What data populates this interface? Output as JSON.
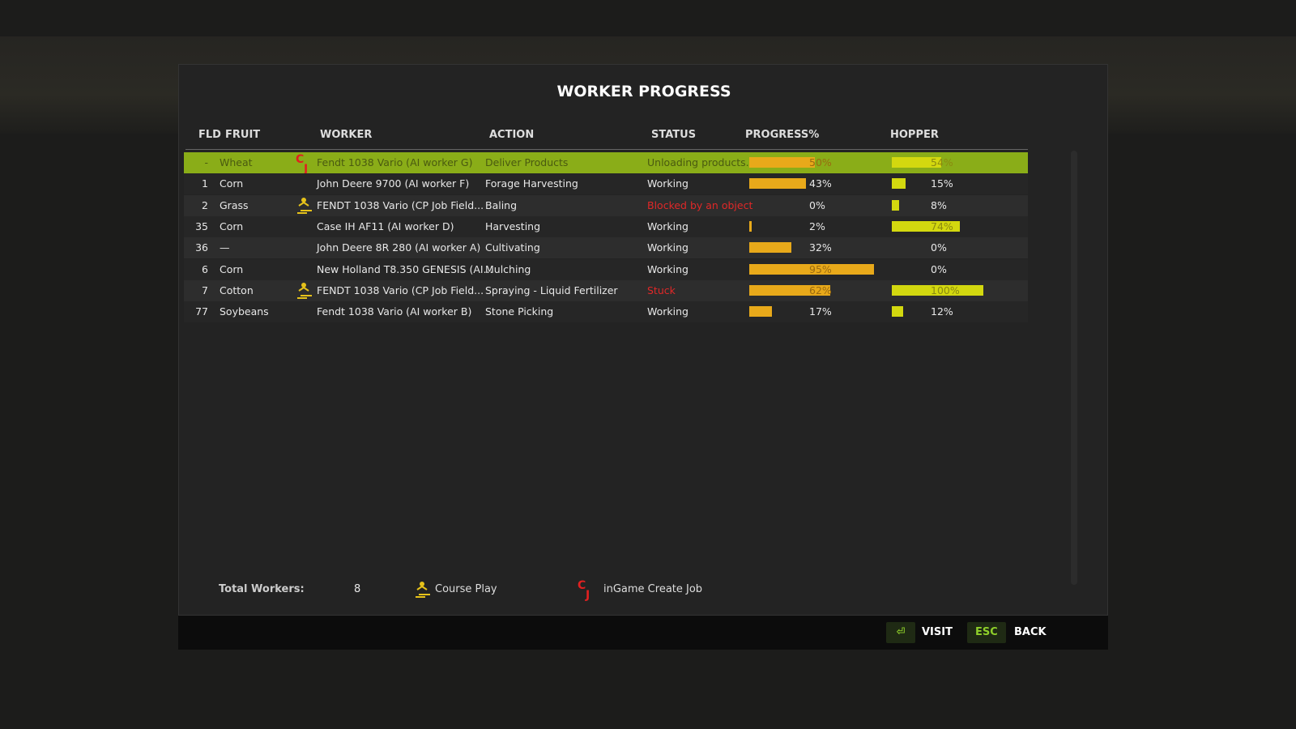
{
  "title": "WORKER PROGRESS",
  "columns": [
    "FLD",
    "FRUIT",
    "WORKER",
    "ACTION",
    "STATUS",
    "PROGRESS%",
    "HOPPER"
  ],
  "bar_color_progress": "#e8a91a",
  "bar_color_hopper": "#d3d80f",
  "rows": [
    {
      "fld": "-",
      "fruit": "Wheat",
      "icon": "create-job",
      "worker": "Fendt 1038 Vario (AI worker G)",
      "action": "Deliver Products",
      "status": "Unloading products...",
      "progress": {
        "value": 50,
        "label": "50%"
      },
      "hopper": {
        "value": 54,
        "label": "54%"
      },
      "highlight": "#8aad18"
    },
    {
      "fld": "1",
      "fruit": "Corn",
      "worker": "John Deere 9700 (AI worker F)",
      "action": "Forage Harvesting",
      "status": "Working",
      "progress": {
        "value": 43,
        "label": "43%"
      },
      "hopper": {
        "value": 15,
        "label": "15%"
      }
    },
    {
      "fld": "2",
      "fruit": "Grass",
      "icon": "course-play",
      "worker": "FENDT 1038 Vario  (CP Job Field...",
      "action": "Baling",
      "status": "Blocked by an object",
      "status_color": "#e02828",
      "progress": {
        "value": 0,
        "label": "0%"
      },
      "hopper": {
        "value": 8,
        "label": "8%"
      }
    },
    {
      "fld": "35",
      "fruit": "Corn",
      "worker": "Case IH AF11 (AI worker D)",
      "action": "Harvesting",
      "status": "Working",
      "progress": {
        "value": 2,
        "label": "2%"
      },
      "hopper": {
        "value": 74,
        "label": "74%"
      }
    },
    {
      "fld": "36",
      "fruit": "—",
      "worker": "John Deere 8R 280 (AI worker A)",
      "action": "Cultivating",
      "status": "Working",
      "progress": {
        "value": 32,
        "label": "32%"
      },
      "hopper": {
        "value": 0,
        "label": "0%"
      }
    },
    {
      "fld": "6",
      "fruit": "Corn",
      "worker": "New Holland T8.350 GENESIS (AI...",
      "action": "Mulching",
      "status": "Working",
      "progress": {
        "value": 95,
        "label": "95%"
      },
      "hopper": {
        "value": 0,
        "label": "0%"
      }
    },
    {
      "fld": "7",
      "fruit": "Cotton",
      "icon": "course-play",
      "worker": "FENDT 1038 Vario  (CP Job Field...",
      "action": "Spraying - Liquid Fertilizer",
      "status": "Stuck",
      "status_color": "#e02828",
      "progress": {
        "value": 62,
        "label": "62%"
      },
      "hopper": {
        "value": 100,
        "label": "100%"
      }
    },
    {
      "fld": "77",
      "fruit": "Soybeans",
      "worker": "Fendt 1038 Vario (AI worker B)",
      "action": "Stone Picking",
      "status": "Working",
      "progress": {
        "value": 17,
        "label": "17%"
      },
      "hopper": {
        "value": 12,
        "label": "12%"
      }
    }
  ],
  "footer": {
    "total_label": "Total Workers:",
    "total_value": 8,
    "legend": [
      "Course Play",
      "inGame Create Job"
    ]
  },
  "buttons": [
    {
      "label": "VISIT"
    },
    {
      "key": "ESC",
      "label": "BACK"
    }
  ]
}
